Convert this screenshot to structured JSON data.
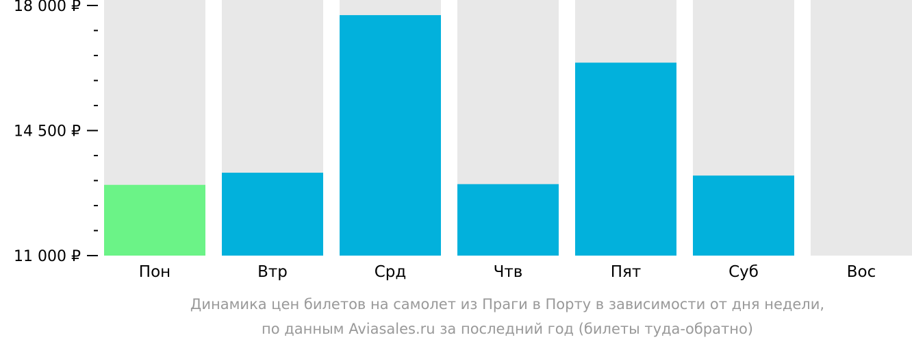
{
  "chart_data": {
    "type": "bar",
    "categories": [
      "Пон",
      "Втр",
      "Срд",
      "Чтв",
      "Пят",
      "Суб",
      "Вос"
    ],
    "values": [
      12980,
      13320,
      17730,
      13000,
      16400,
      13240,
      null
    ],
    "ylim": [
      11000,
      18000
    ],
    "yticks": [
      11000,
      14500,
      18000
    ],
    "ytick_labels": [
      "11 000 ₽",
      "14 500 ₽",
      "18 000 ₽"
    ],
    "minor_ticks_per_interval": 4,
    "highlight_index": 0,
    "colors": {
      "bar": "#02B1DC",
      "highlight": "#6BF387",
      "background_bar": "#E8E8E8",
      "axis": "#000000"
    },
    "caption": [
      "Динамика цен билетов на самолет из Праги в Порту в зависимости от дня недели,",
      "по данным Aviasales.ru за последний год (билеты туда-обратно)"
    ]
  }
}
